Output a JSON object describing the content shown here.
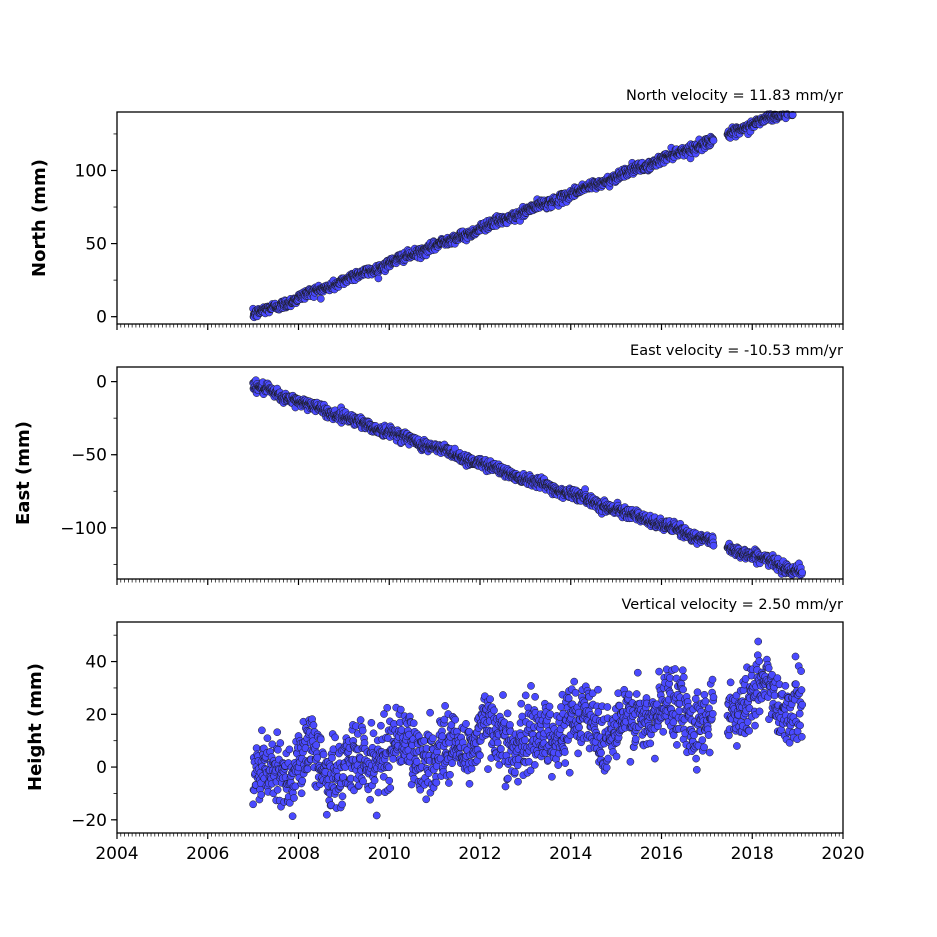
{
  "chart_data": [
    {
      "type": "scatter",
      "title": "North velocity = 11.83 mm/yr",
      "ylabel": "North (mm)",
      "xlim": [
        2004,
        2020
      ],
      "ylim": [
        -5,
        140
      ],
      "yticks": [
        0,
        50,
        100
      ],
      "ytick_labels": [
        "0",
        "50",
        "100"
      ],
      "marker_color": "#4a4aff",
      "edge_color": "#1a1a1a",
      "velocity_mm_per_yr": 11.83,
      "x_start": 2007.0,
      "x_end": 2019.1,
      "y_at_start": 1,
      "gap": [
        2017.15,
        2017.45
      ],
      "noise_mm": 1.6
    },
    {
      "type": "scatter",
      "title": "East velocity = -10.53 mm/yr",
      "ylabel": "East (mm)",
      "xlim": [
        2004,
        2020
      ],
      "ylim": [
        -135,
        10
      ],
      "yticks": [
        0,
        -50,
        -100
      ],
      "ytick_labels": [
        "0",
        "−50",
        "−100"
      ],
      "marker_color": "#4a4aff",
      "edge_color": "#1a1a1a",
      "velocity_mm_per_yr": -10.53,
      "x_start": 2007.0,
      "x_end": 2019.1,
      "y_at_start": -3,
      "gap": [
        2017.15,
        2017.45
      ],
      "noise_mm": 1.8
    },
    {
      "type": "scatter",
      "title": "Vertical velocity = 2.50 mm/yr",
      "ylabel": "Height (mm)",
      "xlim": [
        2004,
        2020
      ],
      "ylim": [
        -25,
        55
      ],
      "yticks": [
        -20,
        0,
        20,
        40
      ],
      "ytick_labels": [
        "−20",
        "0",
        "20",
        "40"
      ],
      "marker_color": "#4a4aff",
      "edge_color": "#1a1a1a",
      "velocity_mm_per_yr": 2.5,
      "x_start": 2007.0,
      "x_end": 2019.1,
      "y_at_start": -3,
      "gap": [
        2017.15,
        2017.45
      ],
      "noise_mm": 6.5,
      "xticks": [
        2004,
        2006,
        2008,
        2010,
        2012,
        2014,
        2016,
        2018,
        2020
      ],
      "xtick_labels": [
        "2004",
        "2006",
        "2008",
        "2010",
        "2012",
        "2014",
        "2016",
        "2018",
        "2020"
      ]
    }
  ]
}
